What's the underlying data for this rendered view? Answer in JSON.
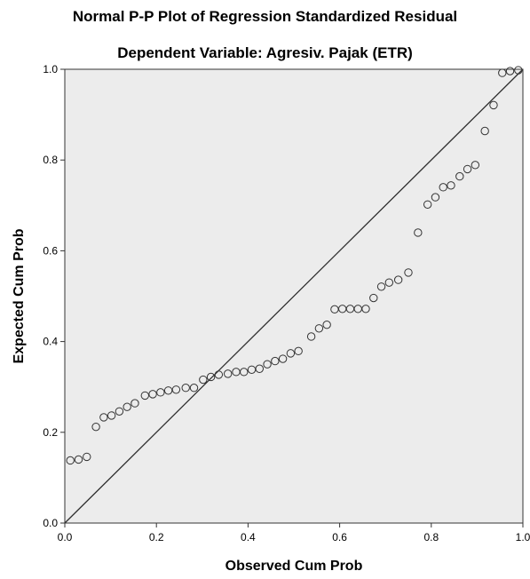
{
  "chart_data": {
    "type": "scatter",
    "title": "Normal P-P Plot of Regression Standardized Residual",
    "subtitle": "Dependent Variable: Agresiv. Pajak (ETR)",
    "xlabel": "Observed Cum Prob",
    "ylabel": "Expected Cum Prob",
    "xlim": [
      0.0,
      1.0
    ],
    "ylim": [
      0.0,
      1.0
    ],
    "x_ticks": [
      "0.0",
      "0.2",
      "0.4",
      "0.6",
      "0.8",
      "1.0"
    ],
    "y_ticks": [
      "0.0",
      "0.2",
      "0.4",
      "0.6",
      "0.8",
      "1.0"
    ],
    "grid": false,
    "reference_line": [
      [
        0.0,
        0.0
      ],
      [
        1.0,
        1.0
      ]
    ],
    "plot_background": "#ececec",
    "marker_color": "#333333",
    "points": [
      [
        0.012,
        0.138
      ],
      [
        0.03,
        0.14
      ],
      [
        0.048,
        0.146
      ],
      [
        0.068,
        0.212
      ],
      [
        0.085,
        0.233
      ],
      [
        0.102,
        0.237
      ],
      [
        0.119,
        0.246
      ],
      [
        0.136,
        0.256
      ],
      [
        0.153,
        0.264
      ],
      [
        0.175,
        0.281
      ],
      [
        0.192,
        0.284
      ],
      [
        0.209,
        0.288
      ],
      [
        0.226,
        0.292
      ],
      [
        0.243,
        0.294
      ],
      [
        0.264,
        0.298
      ],
      [
        0.282,
        0.298
      ],
      [
        0.302,
        0.316
      ],
      [
        0.319,
        0.322
      ],
      [
        0.336,
        0.327
      ],
      [
        0.356,
        0.329
      ],
      [
        0.374,
        0.333
      ],
      [
        0.391,
        0.333
      ],
      [
        0.408,
        0.338
      ],
      [
        0.425,
        0.34
      ],
      [
        0.442,
        0.35
      ],
      [
        0.459,
        0.357
      ],
      [
        0.476,
        0.362
      ],
      [
        0.493,
        0.374
      ],
      [
        0.51,
        0.379
      ],
      [
        0.538,
        0.411
      ],
      [
        0.555,
        0.429
      ],
      [
        0.572,
        0.437
      ],
      [
        0.589,
        0.471
      ],
      [
        0.606,
        0.472
      ],
      [
        0.623,
        0.472
      ],
      [
        0.64,
        0.472
      ],
      [
        0.657,
        0.472
      ],
      [
        0.674,
        0.496
      ],
      [
        0.691,
        0.521
      ],
      [
        0.708,
        0.53
      ],
      [
        0.728,
        0.536
      ],
      [
        0.75,
        0.552
      ],
      [
        0.771,
        0.64
      ],
      [
        0.792,
        0.702
      ],
      [
        0.809,
        0.718
      ],
      [
        0.826,
        0.74
      ],
      [
        0.843,
        0.744
      ],
      [
        0.862,
        0.764
      ],
      [
        0.879,
        0.78
      ],
      [
        0.896,
        0.789
      ],
      [
        0.917,
        0.864
      ],
      [
        0.936,
        0.921
      ],
      [
        0.955,
        0.992
      ],
      [
        0.972,
        0.996
      ],
      [
        0.99,
        0.998
      ]
    ]
  }
}
